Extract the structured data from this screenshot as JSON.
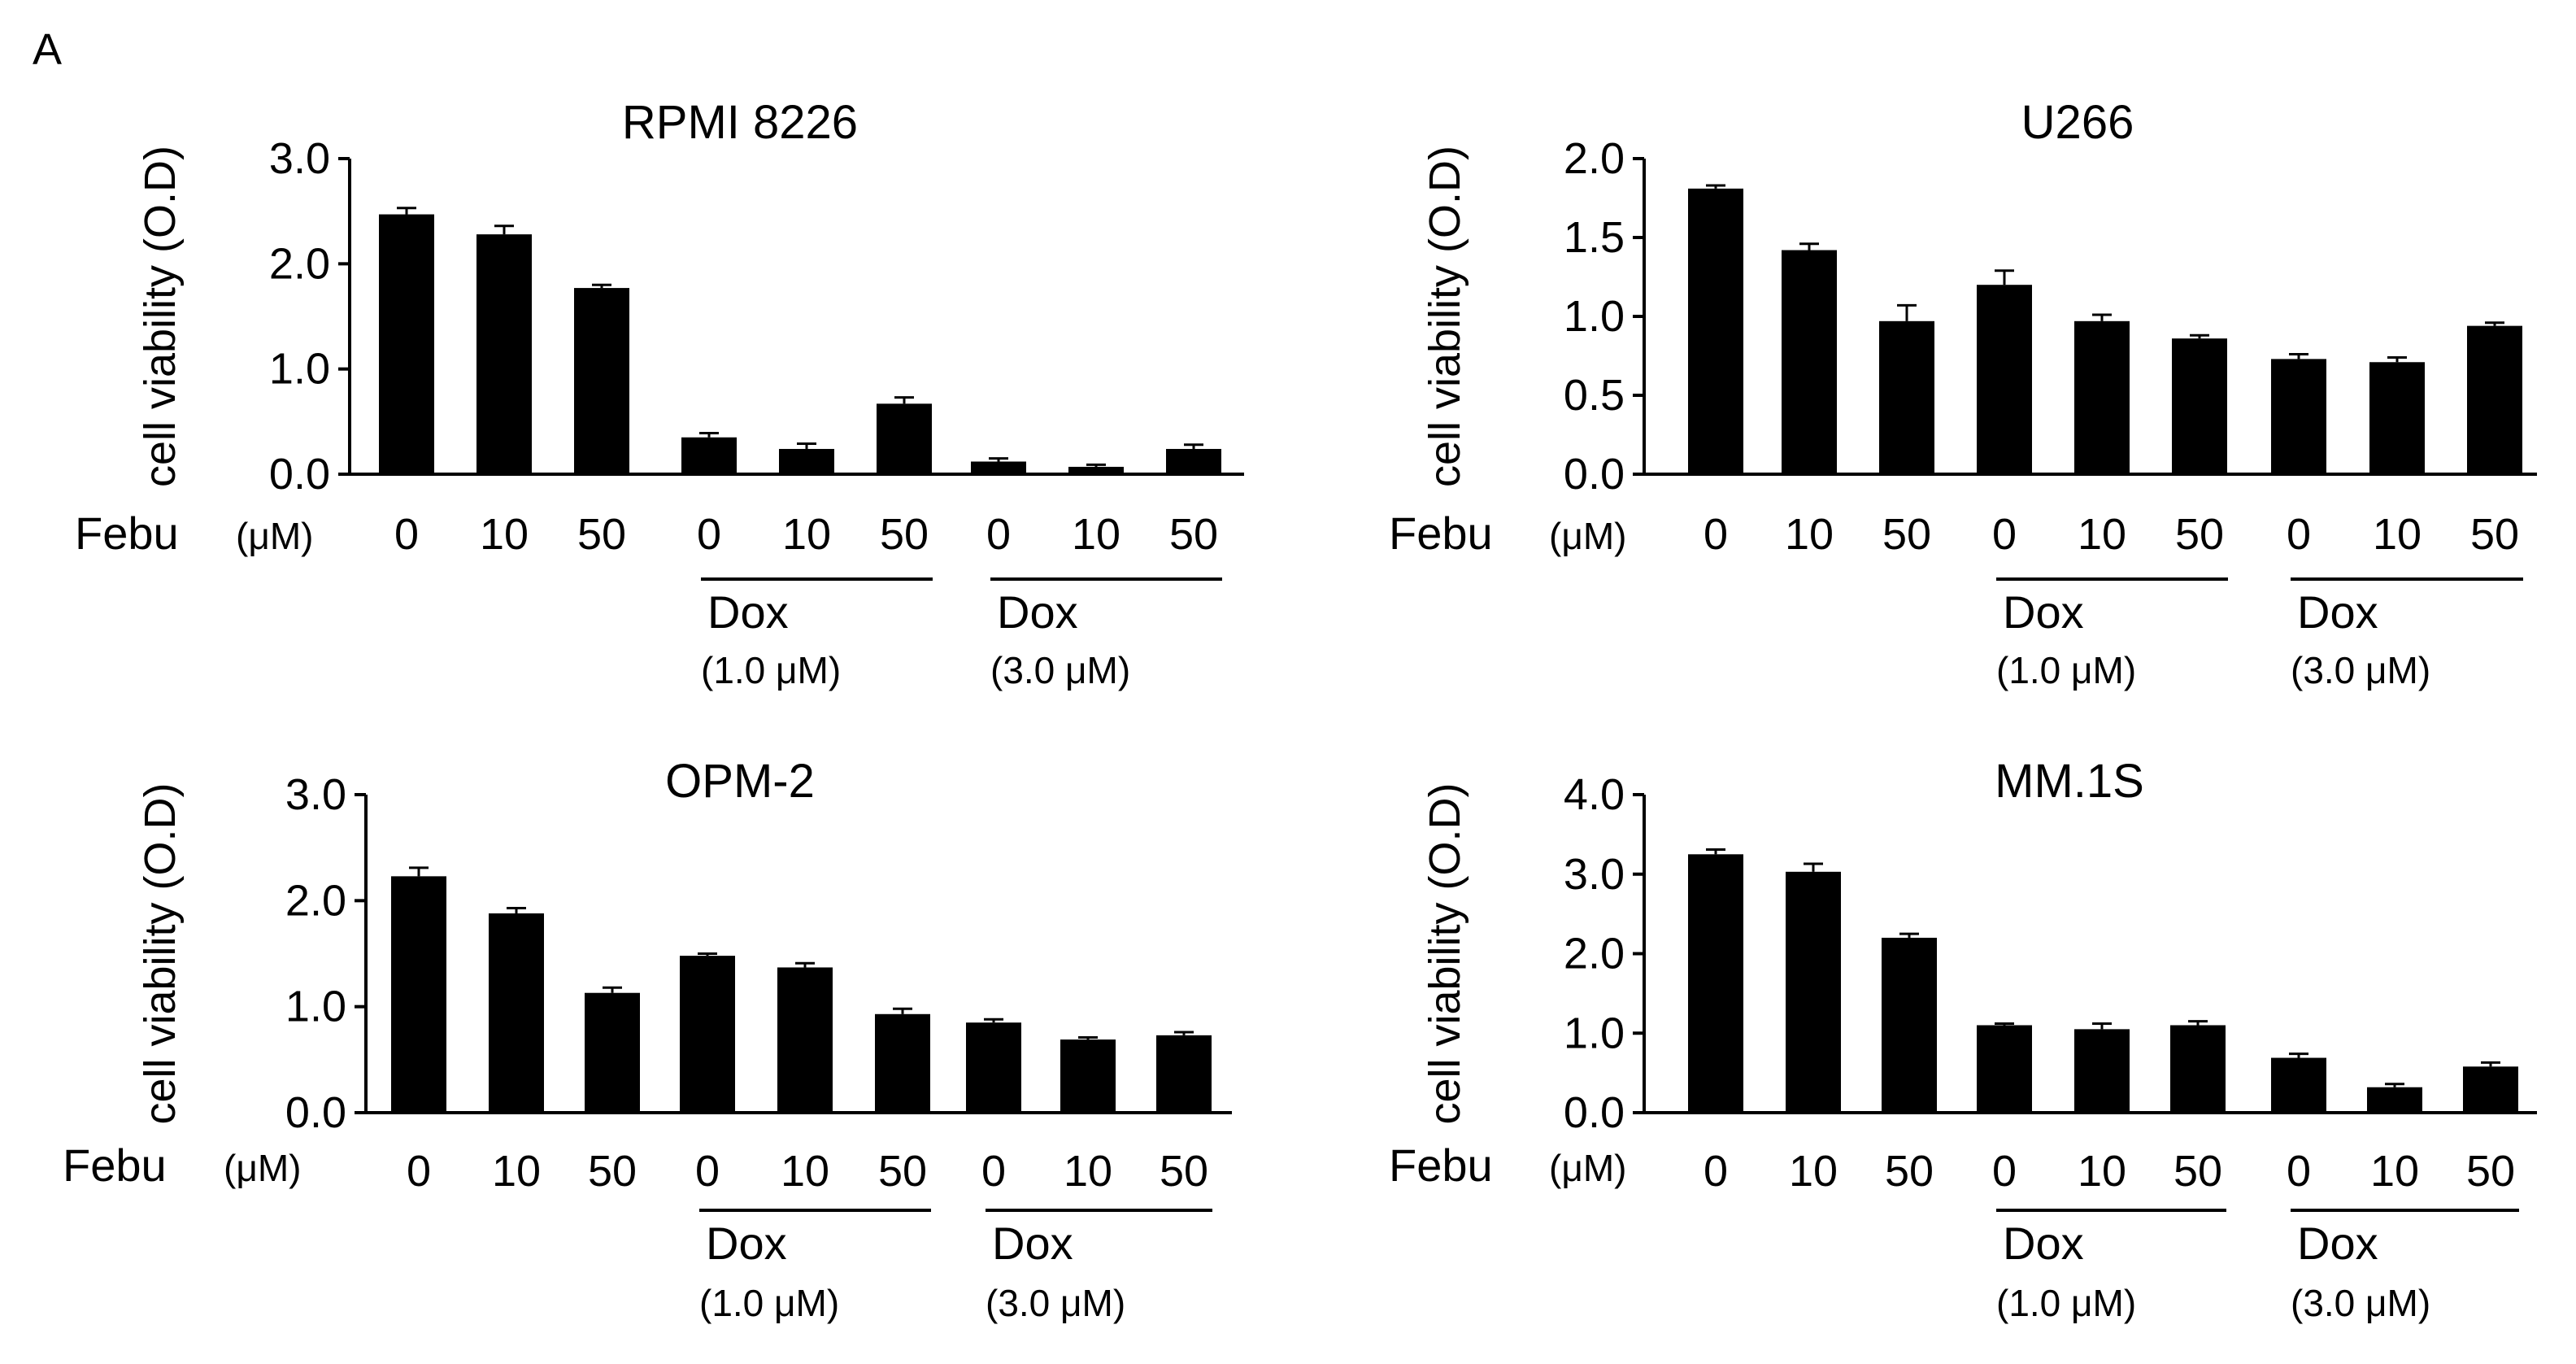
{
  "panel_label": "A",
  "chart_data": [
    {
      "type": "bar",
      "title": "RPMI 8226",
      "ylabel": "cell viability (O.D)",
      "xlabel": "Febu",
      "xlabel_unit": "(μM)",
      "yticks": [
        "0.0",
        "1.0",
        "2.0",
        "3.0"
      ],
      "ylim": [
        0,
        3.0
      ],
      "categories": [
        "0",
        "10",
        "50",
        "0",
        "10",
        "50",
        "0",
        "10",
        "50"
      ],
      "values": [
        2.47,
        2.28,
        1.77,
        0.35,
        0.24,
        0.67,
        0.12,
        0.07,
        0.24
      ],
      "errors": [
        0.06,
        0.08,
        0.03,
        0.04,
        0.05,
        0.06,
        0.03,
        0.02,
        0.04
      ],
      "groups": [
        {
          "label": "Dox",
          "sublabel": "(1.0 μM)",
          "start": 3,
          "end": 5
        },
        {
          "label": "Dox",
          "sublabel": "(3.0 μM)",
          "start": 6,
          "end": 8
        }
      ],
      "bar_color": "#000000"
    },
    {
      "type": "bar",
      "title": "U266",
      "ylabel": "cell viability (O.D)",
      "xlabel": "Febu",
      "xlabel_unit": "(μM)",
      "yticks": [
        "0.0",
        "0.5",
        "1.0",
        "1.5",
        "2.0"
      ],
      "ylim": [
        0,
        2.0
      ],
      "categories": [
        "0",
        "10",
        "50",
        "0",
        "10",
        "50",
        "0",
        "10",
        "50"
      ],
      "values": [
        1.81,
        1.42,
        0.97,
        1.2,
        0.97,
        0.86,
        0.73,
        0.71,
        0.94
      ],
      "errors": [
        0.02,
        0.04,
        0.1,
        0.09,
        0.04,
        0.02,
        0.03,
        0.03,
        0.02
      ],
      "groups": [
        {
          "label": "Dox",
          "sublabel": "(1.0 μM)",
          "start": 3,
          "end": 5
        },
        {
          "label": "Dox",
          "sublabel": "(3.0 μM)",
          "start": 6,
          "end": 8
        }
      ],
      "bar_color": "#000000"
    },
    {
      "type": "bar",
      "title": "OPM-2",
      "ylabel": "cell viability (O.D)",
      "xlabel": "Febu",
      "xlabel_unit": "(μM)",
      "yticks": [
        "0.0",
        "1.0",
        "2.0",
        "3.0"
      ],
      "ylim": [
        0,
        3.0
      ],
      "categories": [
        "0",
        "10",
        "50",
        "0",
        "10",
        "50",
        "0",
        "10",
        "50"
      ],
      "values": [
        2.23,
        1.88,
        1.13,
        1.48,
        1.37,
        0.93,
        0.85,
        0.69,
        0.73
      ],
      "errors": [
        0.08,
        0.05,
        0.05,
        0.02,
        0.04,
        0.05,
        0.03,
        0.02,
        0.03
      ],
      "groups": [
        {
          "label": "Dox",
          "sublabel": "(1.0 μM)",
          "start": 3,
          "end": 5
        },
        {
          "label": "Dox",
          "sublabel": "(3.0 μM)",
          "start": 6,
          "end": 8
        }
      ],
      "bar_color": "#000000"
    },
    {
      "type": "bar",
      "title": "MM.1S",
      "ylabel": "cell viability (O.D)",
      "xlabel": "Febu",
      "xlabel_unit": "(μM)",
      "yticks": [
        "0.0",
        "1.0",
        "2.0",
        "3.0",
        "4.0"
      ],
      "ylim": [
        0,
        4.0
      ],
      "categories": [
        "0",
        "10",
        "50",
        "0",
        "10",
        "50",
        "0",
        "10",
        "50"
      ],
      "values": [
        3.25,
        3.03,
        2.2,
        1.1,
        1.05,
        1.1,
        0.69,
        0.32,
        0.58
      ],
      "errors": [
        0.06,
        0.1,
        0.05,
        0.02,
        0.07,
        0.05,
        0.05,
        0.04,
        0.05
      ],
      "groups": [
        {
          "label": "Dox",
          "sublabel": "(1.0 μM)",
          "start": 3,
          "end": 5
        },
        {
          "label": "Dox",
          "sublabel": "(3.0 μM)",
          "start": 6,
          "end": 8
        }
      ],
      "bar_color": "#000000"
    }
  ]
}
